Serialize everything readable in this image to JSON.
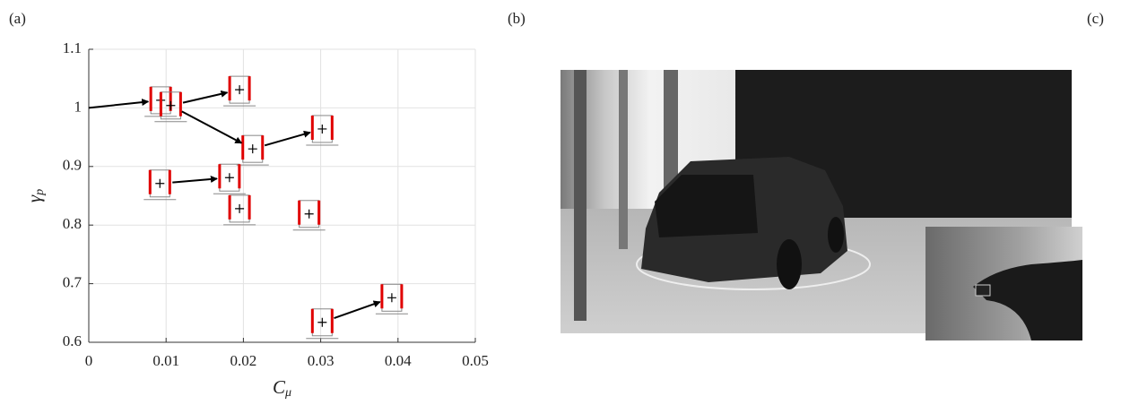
{
  "panel_labels": [
    "(a)",
    "(b)",
    "(c)"
  ],
  "chart_data": {
    "type": "scatter",
    "xlabel": "C",
    "xlabel_sub": "μ",
    "ylabel": "γ",
    "ylabel_sub": "p",
    "x": [
      0.0093,
      0.0106,
      0.0195,
      0.0212,
      0.0302,
      0.0092,
      0.0182,
      0.0195,
      0.0285,
      0.0302,
      0.0392
    ],
    "values": [
      1.013,
      1.004,
      1.031,
      0.93,
      0.964,
      0.871,
      0.881,
      0.828,
      0.819,
      0.634,
      0.676
    ],
    "color": "#e00000",
    "xlim": [
      0,
      0.05
    ],
    "xticks": [
      0,
      0.01,
      0.02,
      0.03,
      0.04,
      0.05
    ],
    "ylim": [
      0.6,
      1.1
    ],
    "yticks": [
      0.6,
      0.7,
      0.8,
      0.9,
      1,
      1.1
    ],
    "grid": true,
    "arrows": [
      {
        "x": [
          0,
          0.0093
        ],
        "y": [
          1,
          1.013
        ]
      },
      {
        "x": [
          0.0106,
          0.0195
        ],
        "y": [
          1.004,
          1.031
        ]
      },
      {
        "x": [
          0.0106,
          0.0212
        ],
        "y": [
          1.004,
          0.93
        ]
      },
      {
        "x": [
          0.0212,
          0.0302
        ],
        "y": [
          0.93,
          0.964
        ]
      },
      {
        "x": [
          0.0092,
          0.0182
        ],
        "y": [
          0.871,
          0.881
        ]
      },
      {
        "x": [
          0.0302,
          0.0392
        ],
        "y": [
          0.634,
          0.676
        ]
      }
    ]
  }
}
